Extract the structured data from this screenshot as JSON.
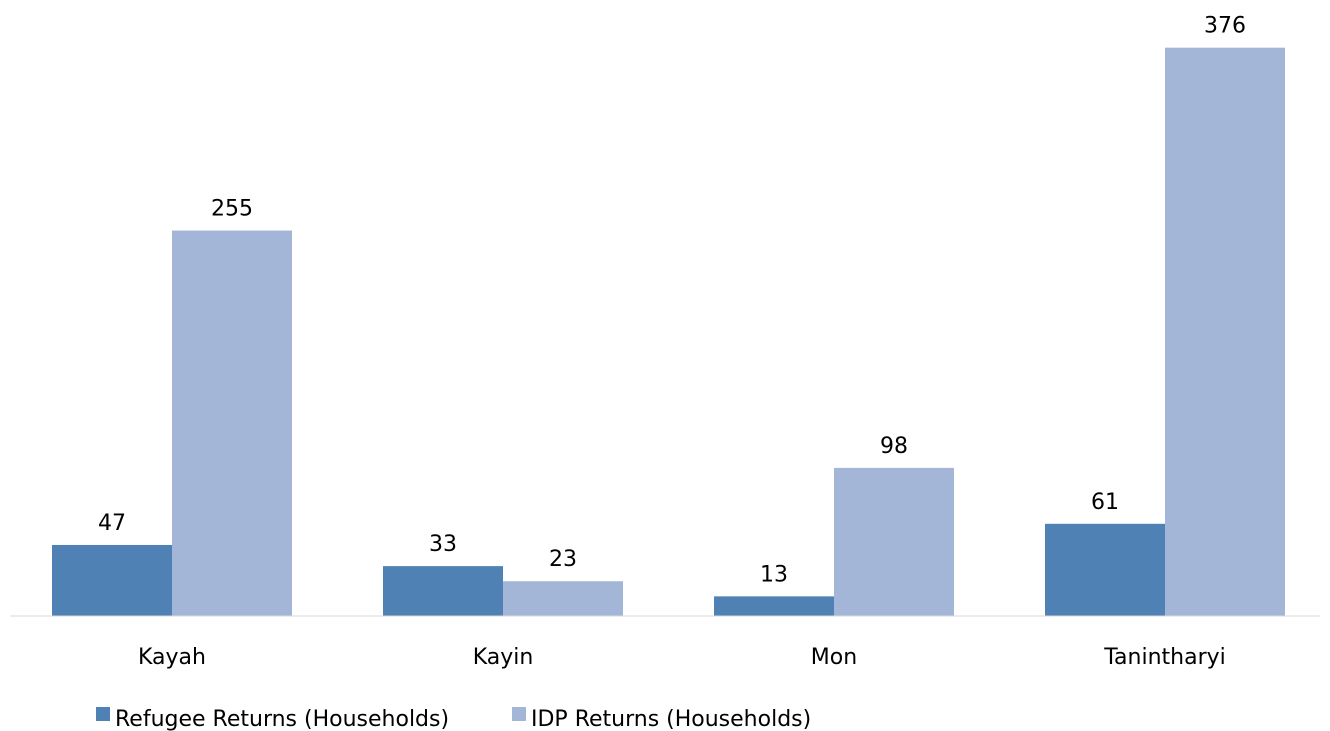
{
  "chart_data": {
    "type": "bar",
    "categories": [
      "Kayah",
      "Kayin",
      "Mon",
      "Tanintharyi"
    ],
    "series": [
      {
        "name": "Refugee Returns (Households)",
        "values": [
          47,
          33,
          13,
          61
        ],
        "color": "#4F81B5"
      },
      {
        "name": "IDP Returns (Households)",
        "values": [
          255,
          23,
          98,
          376
        ],
        "color": "#A3B6D8"
      }
    ],
    "title": "",
    "xlabel": "",
    "ylabel": "",
    "ylim": [
      0,
      400
    ],
    "grid": false,
    "legend_position": "bottom-left"
  }
}
